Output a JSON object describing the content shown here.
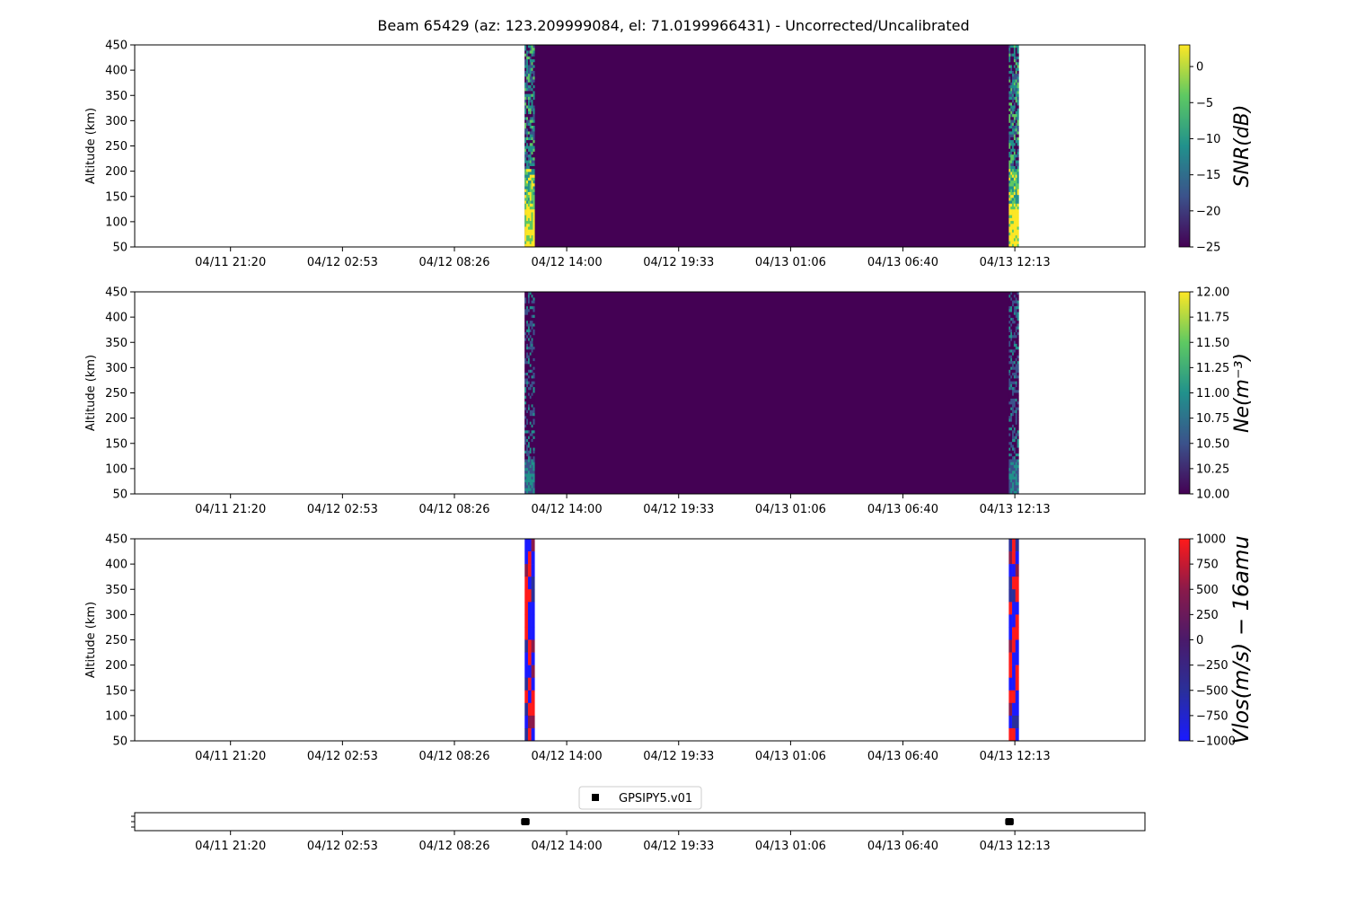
{
  "figure": {
    "title": "Beam 65429 (az: 123.209999084, el: 71.0199966431) - Uncorrected/Uncalibrated"
  },
  "time_ticks": [
    "04/11 21:20",
    "04/12 02:53",
    "04/12 08:26",
    "04/12 14:00",
    "04/12 19:33",
    "04/13 01:06",
    "04/13 06:40",
    "04/13 12:13"
  ],
  "altitude_ticks": [
    50,
    100,
    150,
    200,
    250,
    300,
    350,
    400,
    450
  ],
  "colors": {
    "viridis": [
      "#440154",
      "#3b528b",
      "#21918c",
      "#5ec962",
      "#fde725"
    ],
    "vlos": [
      "#1a1aff",
      "#2a2f9a",
      "#4a1a6a",
      "#8a1a4a",
      "#ff1a1a"
    ],
    "background": "#440154"
  },
  "chart_data": [
    {
      "type": "heatmap",
      "id": "snr",
      "title": "",
      "xlabel": "",
      "ylabel": "Altitude (km)",
      "ylim": [
        50,
        450
      ],
      "time_range": [
        "04/11 16:35",
        "04/13 18:40"
      ],
      "data_interval": [
        "04/12 11:55",
        "04/13 12:00"
      ],
      "edge_bursts": [
        "04/12 11:55",
        "04/13 11:55"
      ],
      "cmap": "viridis",
      "colorbar": {
        "label": "SNR(dB)",
        "range": [
          -25,
          3
        ],
        "ticks": [
          "0",
          "−5",
          "−10",
          "−15",
          "−20",
          "−25"
        ],
        "tick_values": [
          0,
          -5,
          -10,
          -15,
          -20,
          -25
        ]
      }
    },
    {
      "type": "heatmap",
      "id": "ne",
      "title": "",
      "xlabel": "",
      "ylabel": "Altitude (km)",
      "ylim": [
        50,
        450
      ],
      "time_range": [
        "04/11 16:35",
        "04/13 18:40"
      ],
      "data_interval": [
        "04/12 11:55",
        "04/13 12:00"
      ],
      "edge_bursts": [
        "04/12 11:55",
        "04/13 11:55"
      ],
      "cmap": "viridis",
      "colorbar": {
        "label": "Ne(m⁻³)",
        "range": [
          10,
          12
        ],
        "ticks": [
          "12.00",
          "11.75",
          "11.50",
          "11.25",
          "11.00",
          "10.75",
          "10.50",
          "10.25",
          "10.00"
        ],
        "tick_values": [
          12,
          11.75,
          11.5,
          11.25,
          11,
          10.75,
          10.5,
          10.25,
          10
        ]
      }
    },
    {
      "type": "heatmap",
      "id": "vlos",
      "title": "",
      "xlabel": "",
      "ylabel": "Altitude (km)",
      "ylim": [
        50,
        450
      ],
      "time_range": [
        "04/11 16:35",
        "04/13 18:40"
      ],
      "data_interval": null,
      "edge_bursts": [
        "04/12 11:55",
        "04/13 11:55"
      ],
      "cmap": "bwr",
      "colorbar": {
        "label": "Vlos(m/s) − 16amu",
        "range": [
          -1000,
          1000
        ],
        "ticks": [
          "1000",
          "750",
          "500",
          "250",
          "0",
          "−250",
          "−500",
          "−750",
          "−1000"
        ],
        "tick_values": [
          1000,
          750,
          500,
          250,
          0,
          -250,
          -500,
          -750,
          -1000
        ]
      }
    },
    {
      "type": "scatter",
      "id": "gps",
      "xlabel": "",
      "time_range": [
        "04/11 16:35",
        "04/13 18:40"
      ],
      "series": [
        {
          "name": "GPSIPY5.v01",
          "marker": "square",
          "color": "#000000",
          "x": [
            "04/12 11:55",
            "04/12 12:15",
            "04/13 11:55",
            "04/13 12:15"
          ]
        }
      ]
    }
  ]
}
